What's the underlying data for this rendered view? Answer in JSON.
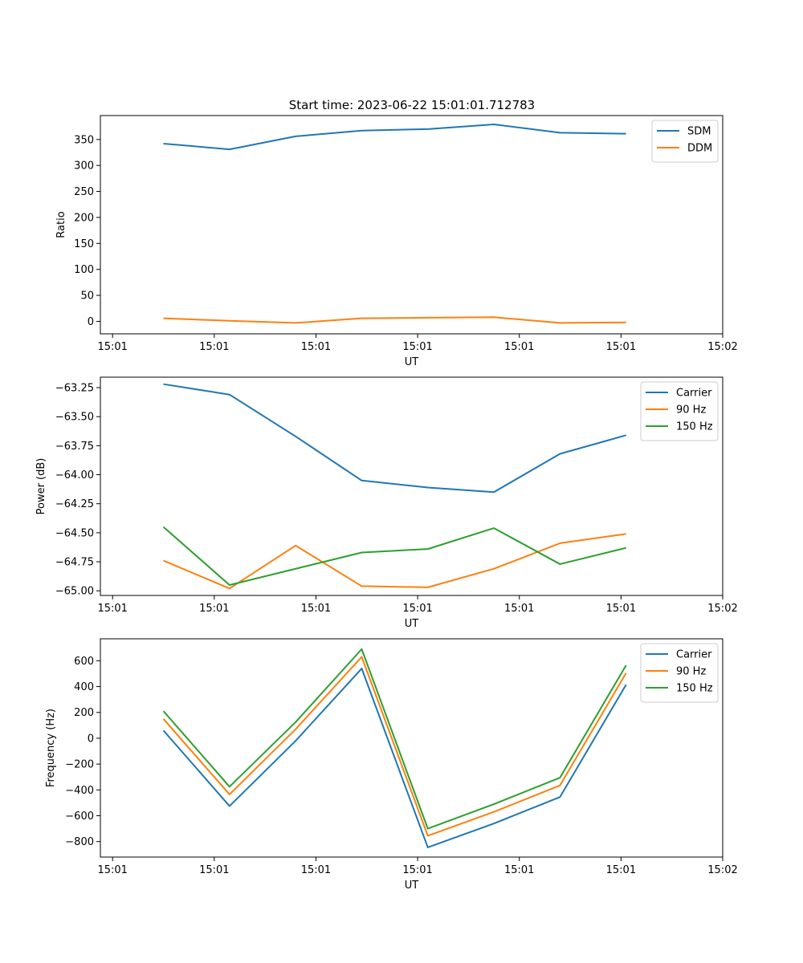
{
  "figure": {
    "title": "Start time: 2023-06-22 15:01:01.712783"
  },
  "chart_data": [
    {
      "type": "line",
      "xlabel": "UT",
      "ylabel": "Ratio",
      "x": [
        0.5,
        1.15,
        1.8,
        2.45,
        3.1,
        3.75,
        4.4,
        5.05
      ],
      "xlim": [
        -0.12,
        6.0
      ],
      "xticks": [
        0,
        1,
        2,
        3,
        4,
        5,
        6
      ],
      "xtick_labels": [
        "15:01",
        "15:01",
        "15:01",
        "15:01",
        "15:01",
        "15:01",
        "15:02"
      ],
      "ylim": [
        -24,
        396
      ],
      "yticks": [
        0,
        50,
        100,
        150,
        200,
        250,
        300,
        350
      ],
      "ytick_labels": [
        "0",
        "50",
        "100",
        "150",
        "200",
        "250",
        "300",
        "350"
      ],
      "legend_position": "upper right",
      "series": [
        {
          "name": "SDM",
          "color": "#1f77b4",
          "values": [
            342,
            331,
            356,
            367,
            370,
            379,
            363,
            361
          ]
        },
        {
          "name": "DDM",
          "color": "#ff7f0e",
          "values": [
            6,
            1,
            -3,
            6,
            7,
            8,
            -3,
            -2
          ]
        }
      ]
    },
    {
      "type": "line",
      "xlabel": "UT",
      "ylabel": "Power (dB)",
      "x": [
        0.5,
        1.15,
        1.8,
        2.45,
        3.1,
        3.75,
        4.4,
        5.05
      ],
      "xlim": [
        -0.12,
        6.0
      ],
      "xticks": [
        0,
        1,
        2,
        3,
        4,
        5,
        6
      ],
      "xtick_labels": [
        "15:01",
        "15:01",
        "15:01",
        "15:01",
        "15:01",
        "15:01",
        "15:02"
      ],
      "ylim": [
        -65.04,
        -63.16
      ],
      "yticks": [
        -65.0,
        -64.75,
        -64.5,
        -64.25,
        -64.0,
        -63.75,
        -63.5,
        -63.25
      ],
      "ytick_labels": [
        "−65.00",
        "−64.75",
        "−64.50",
        "−64.25",
        "−64.00",
        "−63.75",
        "−63.50",
        "−63.25"
      ],
      "legend_position": "upper right",
      "series": [
        {
          "name": "Carrier",
          "color": "#1f77b4",
          "values": [
            -63.22,
            -63.31,
            -63.67,
            -64.05,
            -64.11,
            -64.15,
            -63.82,
            -63.66
          ]
        },
        {
          "name": "90 Hz",
          "color": "#ff7f0e",
          "values": [
            -64.74,
            -64.98,
            -64.61,
            -64.96,
            -64.97,
            -64.81,
            -64.59,
            -64.51
          ]
        },
        {
          "name": "150 Hz",
          "color": "#2ca02c",
          "values": [
            -64.45,
            -64.95,
            -64.81,
            -64.67,
            -64.64,
            -64.46,
            -64.77,
            -64.63
          ]
        }
      ]
    },
    {
      "type": "line",
      "xlabel": "UT",
      "ylabel": "Frequency (Hz)",
      "x": [
        0.5,
        1.15,
        1.8,
        2.45,
        3.1,
        3.75,
        4.4,
        5.05
      ],
      "xlim": [
        -0.12,
        6.0
      ],
      "xticks": [
        0,
        1,
        2,
        3,
        4,
        5,
        6
      ],
      "xtick_labels": [
        "15:01",
        "15:01",
        "15:01",
        "15:01",
        "15:01",
        "15:01",
        "15:02"
      ],
      "ylim": [
        -920,
        770
      ],
      "yticks": [
        -800,
        -600,
        -400,
        -200,
        0,
        200,
        400,
        600
      ],
      "ytick_labels": [
        "−800",
        "−600",
        "−400",
        "−200",
        "0",
        "200",
        "400",
        "600"
      ],
      "legend_position": "upper right",
      "series": [
        {
          "name": "Carrier",
          "color": "#1f77b4",
          "values": [
            60,
            -525,
            -20,
            540,
            -845,
            -660,
            -455,
            415
          ]
        },
        {
          "name": "90 Hz",
          "color": "#ff7f0e",
          "values": [
            150,
            -435,
            70,
            630,
            -755,
            -570,
            -365,
            505
          ]
        },
        {
          "name": "150 Hz",
          "color": "#2ca02c",
          "values": [
            210,
            -375,
            125,
            690,
            -700,
            -510,
            -305,
            565
          ]
        }
      ]
    }
  ]
}
